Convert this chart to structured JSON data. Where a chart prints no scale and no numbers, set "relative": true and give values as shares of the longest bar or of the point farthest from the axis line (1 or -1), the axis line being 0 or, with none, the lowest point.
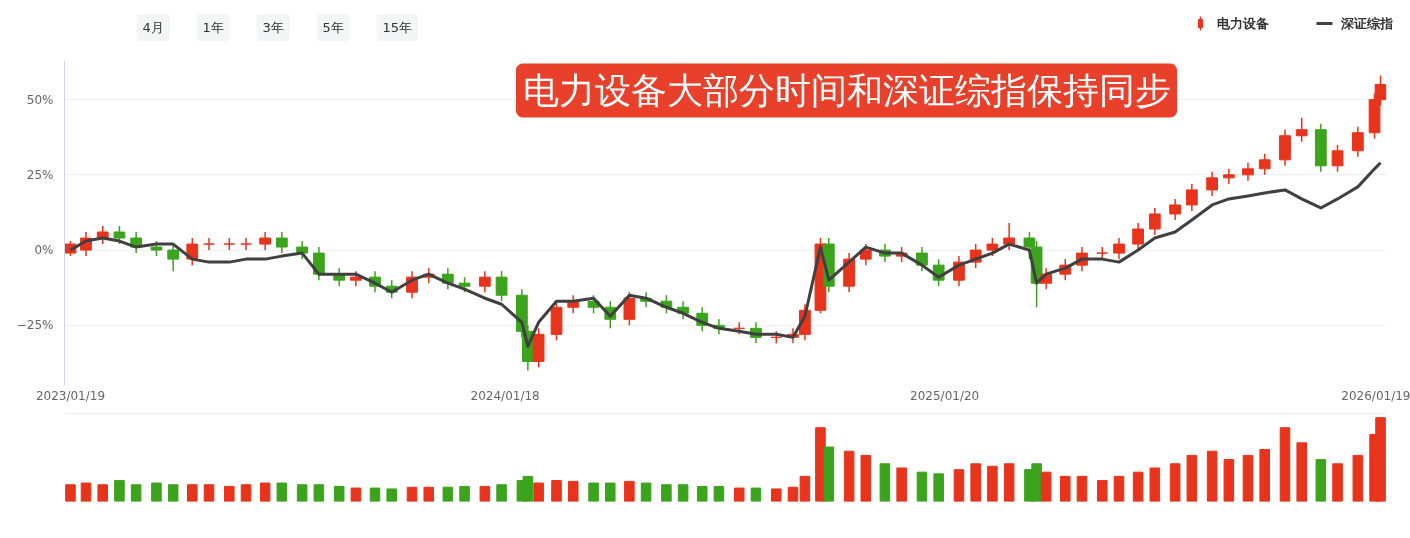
{
  "chart_data": [
    {
      "type": "candlestick",
      "title": "电力设备大部分时间和深证综指保持同步",
      "annotations": [
        "4月",
        "1年",
        "3年",
        "5年",
        "15年"
      ],
      "x": [
        "2023-01-19",
        "2023-02-01",
        "2023-02-15",
        "2023-03-01",
        "2023-03-15",
        "2023-04-01",
        "2023-04-15",
        "2023-05-01",
        "2023-05-15",
        "2023-06-01",
        "2023-06-15",
        "2023-07-01",
        "2023-07-15",
        "2023-08-01",
        "2023-08-15",
        "2023-09-01",
        "2023-09-15",
        "2023-10-01",
        "2023-10-15",
        "2023-11-01",
        "2023-11-15",
        "2023-12-01",
        "2023-12-15",
        "2024-01-01",
        "2024-01-15",
        "2024-02-01",
        "2024-02-06",
        "2024-02-15",
        "2024-03-01",
        "2024-03-15",
        "2024-04-01",
        "2024-04-15",
        "2024-05-01",
        "2024-05-15",
        "2024-06-01",
        "2024-06-15",
        "2024-07-01",
        "2024-07-15",
        "2024-08-01",
        "2024-08-15",
        "2024-09-01",
        "2024-09-15",
        "2024-09-25",
        "2024-10-08",
        "2024-10-15",
        "2024-11-01",
        "2024-11-15",
        "2024-12-01",
        "2024-12-15",
        "2025-01-01",
        "2025-01-15",
        "2025-02-01",
        "2025-02-15",
        "2025-03-01",
        "2025-03-15",
        "2025-04-01",
        "2025-04-07",
        "2025-04-15",
        "2025-05-01",
        "2025-05-15",
        "2025-06-01",
        "2025-06-15",
        "2025-07-01",
        "2025-07-15",
        "2025-08-01",
        "2025-08-15",
        "2025-09-01",
        "2025-09-15",
        "2025-10-01",
        "2025-10-15",
        "2025-11-01",
        "2025-11-15",
        "2025-12-01",
        "2025-12-15",
        "2026-01-01",
        "2026-01-15",
        "2026-01-20"
      ],
      "xlim": [
        "2023-01-14",
        "2026-01-25"
      ],
      "ylim": [
        -45,
        63
      ],
      "yticks": [
        {
          "value": -25,
          "label": "−25%"
        },
        {
          "value": 0,
          "label": "0%"
        },
        {
          "value": 25,
          "label": "25%"
        },
        {
          "value": 50,
          "label": "50%"
        }
      ],
      "tick_labels": "y",
      "grid": "y",
      "legend": "top right",
      "series": [
        {
          "name": "电力设备",
          "type": "candlestick",
          "color": "#e8341c",
          "colors": [
            "#e8341c",
            "#e8341c",
            "#e8341c",
            "#3ca31c",
            "#3ca31c",
            "#3ca31c",
            "#3ca31c",
            "#e8341c",
            "#e8341c",
            "#e8341c",
            "#e8341c",
            "#e8341c",
            "#3ca31c",
            "#3ca31c",
            "#3ca31c",
            "#3ca31c",
            "#e8341c",
            "#3ca31c",
            "#3ca31c",
            "#e8341c",
            "#e8341c",
            "#3ca31c",
            "#3ca31c",
            "#e8341c",
            "#3ca31c",
            "#3ca31c",
            "#3ca31c",
            "#e8341c",
            "#e8341c",
            "#e8341c",
            "#3ca31c",
            "#3ca31c",
            "#e8341c",
            "#3ca31c",
            "#3ca31c",
            "#3ca31c",
            "#3ca31c",
            "#3ca31c",
            "#e8341c",
            "#3ca31c",
            "#e8341c",
            "#e8341c",
            "#e8341c",
            "#e8341c",
            "#3ca31c",
            "#e8341c",
            "#e8341c",
            "#3ca31c",
            "#e8341c",
            "#3ca31c",
            "#3ca31c",
            "#e8341c",
            "#e8341c",
            "#e8341c",
            "#e8341c",
            "#3ca31c",
            "#3ca31c",
            "#e8341c",
            "#e8341c",
            "#e8341c",
            "#e8341c",
            "#e8341c",
            "#e8341c",
            "#e8341c",
            "#e8341c",
            "#e8341c",
            "#e8341c",
            "#e8341c",
            "#e8341c",
            "#e8341c",
            "#e8341c",
            "#e8341c",
            "#3ca31c",
            "#e8341c",
            "#e8341c",
            "#e8341c",
            "#e8341c"
          ],
          "ohlc": [
            [
              -1,
              3,
              -2,
              2
            ],
            [
              0,
              6,
              -2,
              4
            ],
            [
              4,
              8,
              2,
              6
            ],
            [
              6,
              8,
              2,
              4
            ],
            [
              4,
              6,
              -1,
              1
            ],
            [
              1,
              3,
              -2,
              0
            ],
            [
              0,
              2,
              -7,
              -3
            ],
            [
              -3,
              4,
              -5,
              2
            ],
            [
              2,
              4,
              0,
              2
            ],
            [
              2,
              4,
              0,
              2
            ],
            [
              2,
              4,
              0,
              2
            ],
            [
              2,
              6,
              0,
              4
            ],
            [
              4,
              6,
              -1,
              1
            ],
            [
              1,
              3,
              -3,
              -1
            ],
            [
              -1,
              1,
              -10,
              -8
            ],
            [
              -8,
              -6,
              -12,
              -10
            ],
            [
              -10,
              -7,
              -12,
              -9
            ],
            [
              -9,
              -7,
              -14,
              -12
            ],
            [
              -12,
              -10,
              -16,
              -14
            ],
            [
              -14,
              -7,
              -16,
              -9
            ],
            [
              -9,
              -6,
              -11,
              -8
            ],
            [
              -8,
              -6,
              -13,
              -11
            ],
            [
              -11,
              -9,
              -14,
              -12
            ],
            [
              -12,
              -7,
              -14,
              -9
            ],
            [
              -9,
              -7,
              -17,
              -15
            ],
            [
              -15,
              -13,
              -29,
              -27
            ],
            [
              -27,
              -25,
              -40,
              -37
            ],
            [
              -37,
              -26,
              -39,
              -28
            ],
            [
              -28,
              -17,
              -30,
              -19
            ],
            [
              -19,
              -15,
              -21,
              -17
            ],
            [
              -17,
              -15,
              -21,
              -19
            ],
            [
              -19,
              -17,
              -26,
              -23
            ],
            [
              -23,
              -14,
              -25,
              -16
            ],
            [
              -16,
              -14,
              -19,
              -17
            ],
            [
              -17,
              -15,
              -21,
              -19
            ],
            [
              -19,
              -17,
              -23,
              -21
            ],
            [
              -21,
              -19,
              -27,
              -25
            ],
            [
              -25,
              -23,
              -28,
              -26
            ],
            [
              -26,
              -24,
              -28,
              -26
            ],
            [
              -26,
              -24,
              -31,
              -29
            ],
            [
              -29,
              -27,
              -31,
              -29
            ],
            [
              -29,
              -26,
              -31,
              -28
            ],
            [
              -28,
              -18,
              -30,
              -20
            ],
            [
              -20,
              4,
              -21,
              2
            ],
            [
              2,
              4,
              -14,
              -12
            ],
            [
              -12,
              -1,
              -14,
              -3
            ],
            [
              -3,
              2,
              -5,
              0
            ],
            [
              0,
              2,
              -4,
              -2
            ],
            [
              -2,
              1,
              -4,
              -1
            ],
            [
              -1,
              1,
              -7,
              -5
            ],
            [
              -5,
              -3,
              -12,
              -10
            ],
            [
              -10,
              -2,
              -12,
              -4
            ],
            [
              -4,
              2,
              -6,
              0
            ],
            [
              0,
              4,
              -2,
              2
            ],
            [
              2,
              9,
              0,
              4
            ],
            [
              4,
              6,
              -3,
              1
            ],
            [
              1,
              3,
              -19,
              -11
            ],
            [
              -11,
              -6,
              -13,
              -8
            ],
            [
              -8,
              -3,
              -10,
              -5
            ],
            [
              -5,
              1,
              -7,
              -1
            ],
            [
              -1,
              1,
              -3,
              -1
            ],
            [
              -1,
              4,
              -3,
              2
            ],
            [
              2,
              9,
              0,
              7
            ],
            [
              7,
              14,
              5,
              12
            ],
            [
              12,
              17,
              10,
              15
            ],
            [
              15,
              22,
              13,
              20
            ],
            [
              20,
              26,
              18,
              24
            ],
            [
              24,
              27,
              22,
              25
            ],
            [
              25,
              29,
              23,
              27
            ],
            [
              27,
              32,
              25,
              30
            ],
            [
              30,
              40,
              28,
              38
            ],
            [
              38,
              44,
              36,
              40
            ],
            [
              40,
              42,
              26,
              28
            ],
            [
              28,
              35,
              26,
              33
            ],
            [
              33,
              41,
              31,
              39
            ],
            [
              39,
              52,
              37,
              50
            ],
            [
              50,
              58,
              48,
              55
            ]
          ]
        },
        {
          "name": "深证综指",
          "type": "line",
          "color": "#404040",
          "values": [
            0,
            3,
            4,
            3,
            1,
            2,
            2,
            -3,
            -4,
            -4,
            -3,
            -3,
            -2,
            -1,
            -8,
            -8,
            -8,
            -11,
            -14,
            -10,
            -8,
            -11,
            -13,
            -16,
            -18,
            -24,
            -32,
            -24,
            -17,
            -17,
            -16,
            -22,
            -15,
            -16,
            -19,
            -21,
            -24,
            -26,
            -27,
            -28,
            -28,
            -29,
            -22,
            1,
            -10,
            -4,
            1,
            -1,
            -1,
            -5,
            -9,
            -5,
            -3,
            -1,
            2,
            0,
            -11,
            -8,
            -6,
            -3,
            -3,
            -4,
            0,
            4,
            6,
            10,
            15,
            17,
            18,
            19,
            20,
            17,
            14,
            17,
            21,
            27,
            29
          ]
        }
      ]
    },
    {
      "type": "bar",
      "relative": true,
      "tick_labels": "x",
      "x": [
        "2023-01-19",
        "2023-02-01",
        "2023-02-15",
        "2023-03-01",
        "2023-03-15",
        "2023-04-01",
        "2023-04-15",
        "2023-05-01",
        "2023-05-15",
        "2023-06-01",
        "2023-06-15",
        "2023-07-01",
        "2023-07-15",
        "2023-08-01",
        "2023-08-15",
        "2023-09-01",
        "2023-09-15",
        "2023-10-01",
        "2023-10-15",
        "2023-11-01",
        "2023-11-15",
        "2023-12-01",
        "2023-12-15",
        "2024-01-01",
        "2024-01-15",
        "2024-02-01",
        "2024-02-06",
        "2024-02-15",
        "2024-03-01",
        "2024-03-15",
        "2024-04-01",
        "2024-04-15",
        "2024-05-01",
        "2024-05-15",
        "2024-06-01",
        "2024-06-15",
        "2024-07-01",
        "2024-07-15",
        "2024-08-01",
        "2024-08-15",
        "2024-09-01",
        "2024-09-15",
        "2024-09-25",
        "2024-10-08",
        "2024-10-15",
        "2024-11-01",
        "2024-11-15",
        "2024-12-01",
        "2024-12-15",
        "2025-01-01",
        "2025-01-15",
        "2025-02-01",
        "2025-02-15",
        "2025-03-01",
        "2025-03-15",
        "2025-04-01",
        "2025-04-07",
        "2025-04-15",
        "2025-05-01",
        "2025-05-15",
        "2025-06-01",
        "2025-06-15",
        "2025-07-01",
        "2025-07-15",
        "2025-08-01",
        "2025-08-15",
        "2025-09-01",
        "2025-09-15",
        "2025-10-01",
        "2025-10-15",
        "2025-11-01",
        "2025-11-15",
        "2025-12-01",
        "2025-12-15",
        "2026-01-01",
        "2026-01-15",
        "2026-01-20"
      ],
      "xlim": [
        "2023-01-14",
        "2026-01-25"
      ],
      "xticks": [
        {
          "value": "2023-01-19",
          "label": "2023/01/19"
        },
        {
          "value": "2024-01-18",
          "label": "2024/01/18"
        },
        {
          "value": "2025-01-20",
          "label": "2025/01/20"
        },
        {
          "value": "2026-01-19",
          "label": "2026/01/19"
        }
      ],
      "values": [
        0.2,
        0.22,
        0.2,
        0.25,
        0.2,
        0.22,
        0.2,
        0.2,
        0.2,
        0.18,
        0.2,
        0.22,
        0.22,
        0.2,
        0.2,
        0.18,
        0.16,
        0.16,
        0.15,
        0.17,
        0.17,
        0.17,
        0.18,
        0.18,
        0.2,
        0.25,
        0.3,
        0.22,
        0.25,
        0.24,
        0.22,
        0.22,
        0.24,
        0.22,
        0.2,
        0.2,
        0.18,
        0.18,
        0.16,
        0.16,
        0.15,
        0.17,
        0.3,
        0.88,
        0.65,
        0.6,
        0.55,
        0.45,
        0.4,
        0.35,
        0.33,
        0.38,
        0.45,
        0.42,
        0.45,
        0.38,
        0.45,
        0.35,
        0.3,
        0.3,
        0.25,
        0.3,
        0.35,
        0.4,
        0.45,
        0.55,
        0.6,
        0.5,
        0.55,
        0.62,
        0.88,
        0.7,
        0.5,
        0.45,
        0.55,
        0.8,
        1
      ],
      "colors": [
        "#e8341c",
        "#e8341c",
        "#e8341c",
        "#3ca31c",
        "#3ca31c",
        "#3ca31c",
        "#3ca31c",
        "#e8341c",
        "#e8341c",
        "#e8341c",
        "#e8341c",
        "#e8341c",
        "#3ca31c",
        "#3ca31c",
        "#3ca31c",
        "#3ca31c",
        "#e8341c",
        "#3ca31c",
        "#3ca31c",
        "#e8341c",
        "#e8341c",
        "#3ca31c",
        "#3ca31c",
        "#e8341c",
        "#3ca31c",
        "#3ca31c",
        "#3ca31c",
        "#e8341c",
        "#e8341c",
        "#e8341c",
        "#3ca31c",
        "#3ca31c",
        "#e8341c",
        "#3ca31c",
        "#3ca31c",
        "#3ca31c",
        "#3ca31c",
        "#3ca31c",
        "#e8341c",
        "#3ca31c",
        "#e8341c",
        "#e8341c",
        "#e8341c",
        "#e8341c",
        "#3ca31c",
        "#e8341c",
        "#e8341c",
        "#3ca31c",
        "#e8341c",
        "#3ca31c",
        "#3ca31c",
        "#e8341c",
        "#e8341c",
        "#e8341c",
        "#e8341c",
        "#3ca31c",
        "#3ca31c",
        "#e8341c",
        "#e8341c",
        "#e8341c",
        "#e8341c",
        "#e8341c",
        "#e8341c",
        "#e8341c",
        "#e8341c",
        "#e8341c",
        "#e8341c",
        "#e8341c",
        "#e8341c",
        "#e8341c",
        "#e8341c",
        "#e8341c",
        "#3ca31c",
        "#e8341c",
        "#e8341c",
        "#e8341c",
        "#e8341c"
      ]
    }
  ]
}
